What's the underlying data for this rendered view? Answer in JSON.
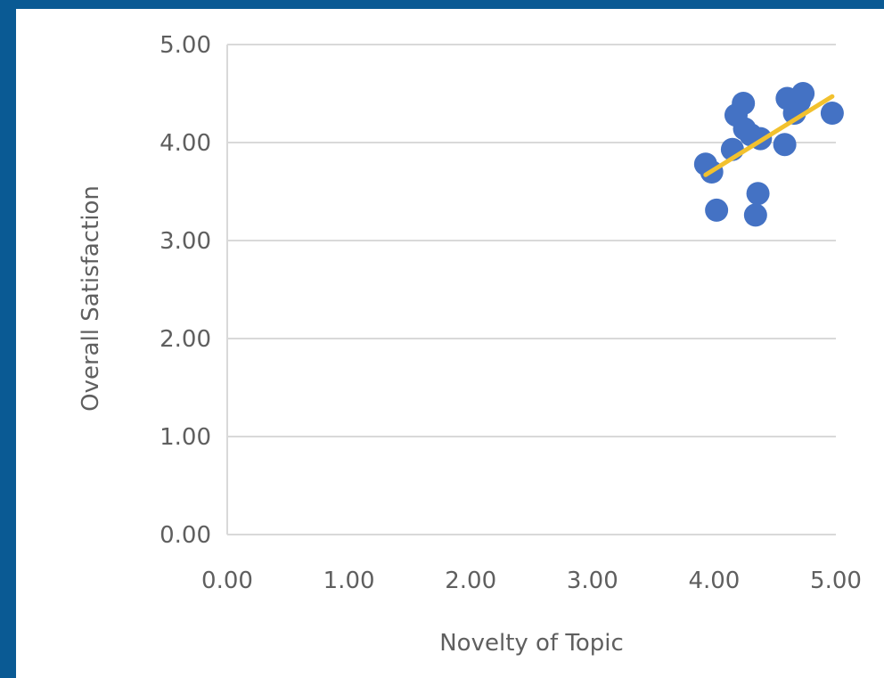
{
  "colors": {
    "frame": "#0a5a94",
    "background": "#ffffff",
    "gridline": "#d9d9d9",
    "point": "#4472c4",
    "trendline": "#f2c12e",
    "text": "#5f5f5f"
  },
  "chart_data": {
    "type": "scatter",
    "title": "",
    "xlabel": "Novelty of Topic",
    "ylabel": "Overall Satisfaction",
    "xlim": [
      0,
      5
    ],
    "ylim": [
      0,
      5
    ],
    "x_ticks": [
      "0.00",
      "1.00",
      "2.00",
      "3.00",
      "4.00",
      "5.00"
    ],
    "y_ticks": [
      "0.00",
      "1.00",
      "2.00",
      "3.00",
      "4.00",
      "5.00"
    ],
    "grid": "horizontal",
    "legend": "none",
    "points": [
      {
        "x": 3.93,
        "y": 3.78
      },
      {
        "x": 3.98,
        "y": 3.7
      },
      {
        "x": 4.02,
        "y": 3.31
      },
      {
        "x": 4.15,
        "y": 3.93
      },
      {
        "x": 4.18,
        "y": 4.28
      },
      {
        "x": 4.24,
        "y": 4.4
      },
      {
        "x": 4.25,
        "y": 4.14
      },
      {
        "x": 4.3,
        "y": 4.08
      },
      {
        "x": 4.34,
        "y": 3.26
      },
      {
        "x": 4.36,
        "y": 3.48
      },
      {
        "x": 4.38,
        "y": 4.04
      },
      {
        "x": 4.58,
        "y": 3.98
      },
      {
        "x": 4.6,
        "y": 4.45
      },
      {
        "x": 4.66,
        "y": 4.3
      },
      {
        "x": 4.7,
        "y": 4.42
      },
      {
        "x": 4.73,
        "y": 4.5
      },
      {
        "x": 4.97,
        "y": 4.3
      }
    ],
    "trendline": {
      "x": [
        3.93,
        4.97
      ],
      "y": [
        3.67,
        4.47
      ]
    }
  }
}
